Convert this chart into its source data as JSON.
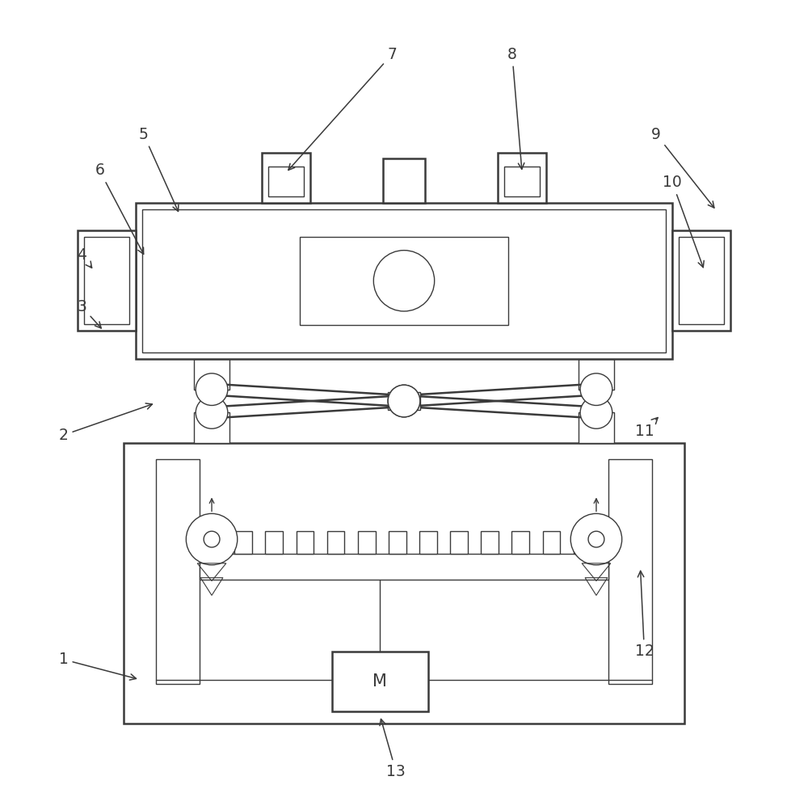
{
  "bg_color": "#ffffff",
  "line_color": "#3a3a3a",
  "lw_main": 1.8,
  "lw_thin": 1.0,
  "fig_width": 10.0,
  "fig_height": 9.97
}
